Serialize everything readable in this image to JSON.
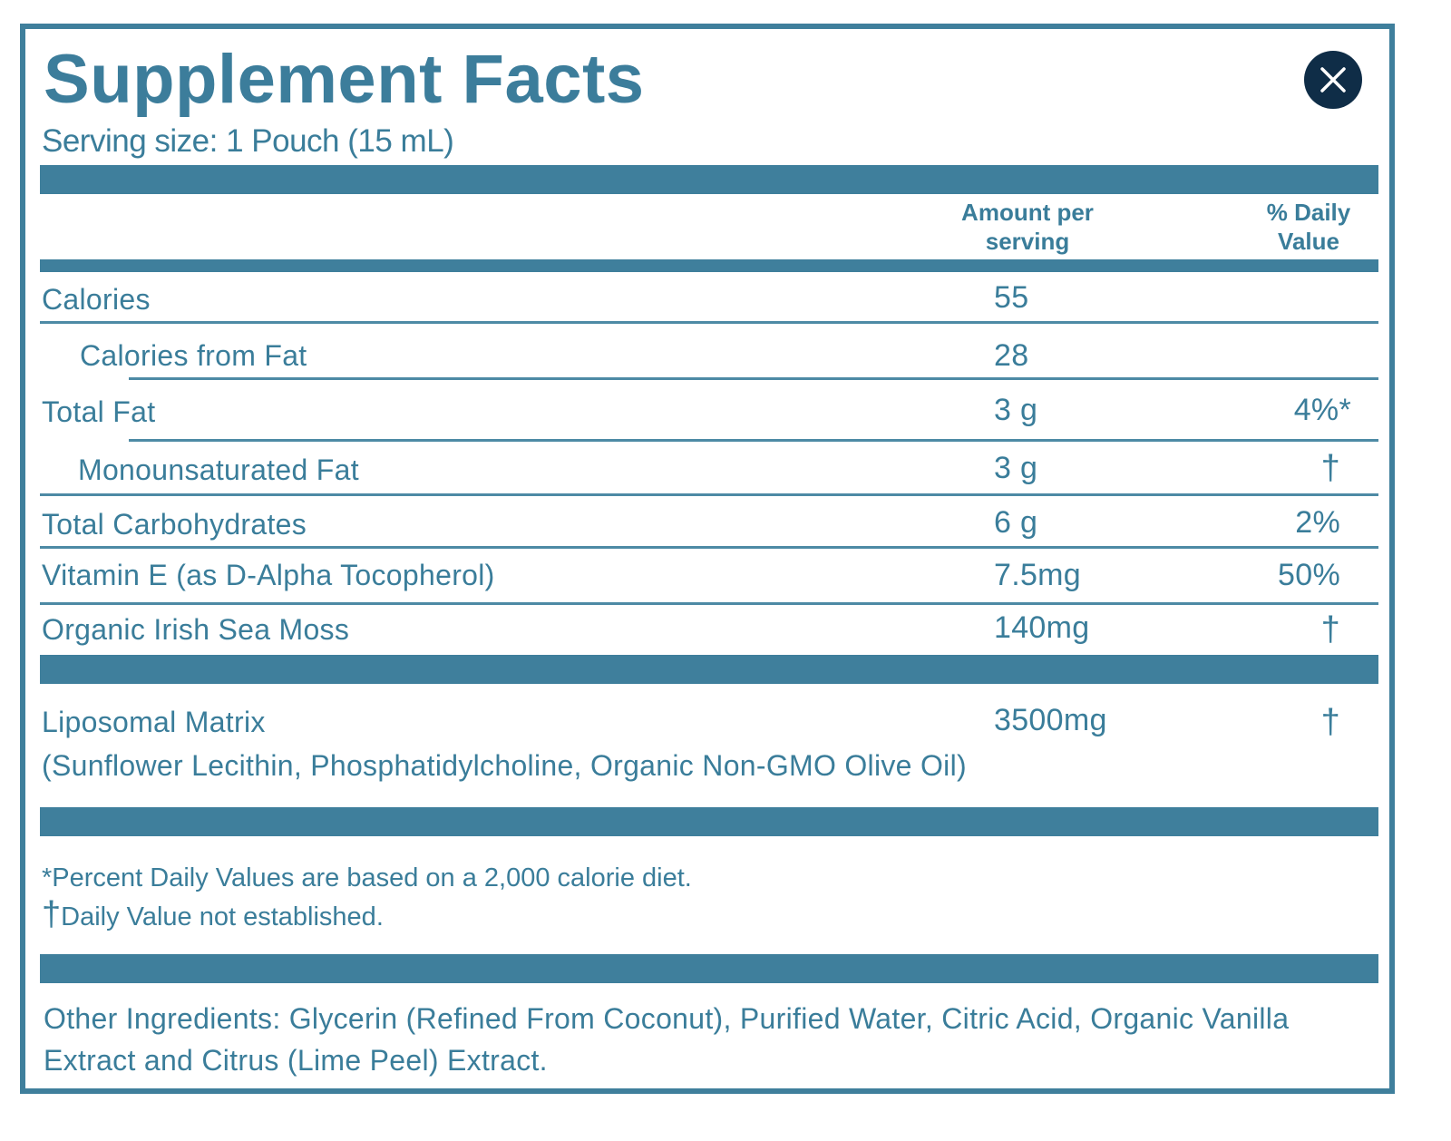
{
  "title": "Supplement Facts",
  "serving_size": "Serving size: 1 Pouch (15 mL)",
  "header": {
    "amount_line1": "Amount per",
    "amount_line2": "serving",
    "dv_line1": "% Daily",
    "dv_line2": "Value"
  },
  "rows": [
    {
      "name": "Calories",
      "amount": "55",
      "dv": ""
    },
    {
      "name": "Calories from Fat",
      "amount": "28",
      "dv": ""
    },
    {
      "name": "Total Fat",
      "amount": "3 g",
      "dv": "4%*"
    },
    {
      "name": "Monounsaturated Fat",
      "amount": "3 g",
      "dv": "†"
    },
    {
      "name": "Total Carbohydrates",
      "amount": "6 g",
      "dv": "2%"
    },
    {
      "name": "Vitamin E (as D-Alpha Tocopherol)",
      "amount": "7.5mg",
      "dv": "50%"
    },
    {
      "name": "Organic Irish Sea Moss",
      "amount": "140mg",
      "dv": "†"
    }
  ],
  "matrix": {
    "name": "Liposomal Matrix",
    "amount": "3500mg",
    "dv": "†",
    "sub": "(Sunflower Lecithin, Phosphatidylcholine, Organic Non-GMO Olive Oil)"
  },
  "notes": {
    "percent": "*Percent Daily Values are based on a 2,000 calorie diet.",
    "dagger_symbol": "†",
    "dagger_text": "Daily Value not established."
  },
  "other_ingredients": "Other Ingredients: Glycerin (Refined From Coconut), Purified Water, Citric Acid, Organic Vanilla Extract and Citrus (Lime Peel) Extract.",
  "icons": {
    "close": "close-icon"
  },
  "colors": {
    "accent": "#3f7f9c",
    "text": "#3a7d9a",
    "close_bg": "#0f2d47"
  }
}
